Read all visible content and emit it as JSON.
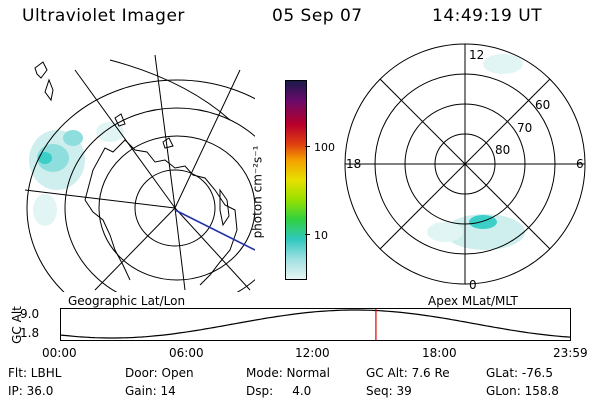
{
  "header": {
    "title": "Ultraviolet Imager",
    "date": "05 Sep 07",
    "time": "14:49:19 UT"
  },
  "colorbar": {
    "unit_label": "photon cm⁻²s⁻¹",
    "ticks": [
      "100",
      "10"
    ]
  },
  "left_panel": {
    "caption": "Geographic Lat/Lon"
  },
  "right_panel": {
    "caption": "Apex MLat/MLT",
    "mlt_labels": {
      "top": "12",
      "bottom": "0",
      "left": "18",
      "right": "6"
    },
    "lat_labels": [
      "60",
      "70",
      "80"
    ]
  },
  "alt_plot": {
    "ylabel": "GC Alt",
    "ymax": "9.0",
    "ymin": "1.8",
    "xticks": [
      "00:00",
      "06:00",
      "12:00",
      "18:00",
      "23:59"
    ],
    "current_hour": 14.82
  },
  "footer": {
    "row1": [
      "Flt: LBHL",
      "Door: Open",
      "Mode: Normal",
      "GC Alt: 7.6 Re",
      "GLat: -76.5"
    ],
    "row2": [
      "IP: 36.0",
      "Gain: 14",
      "Dsp:     4.0",
      "Seq: 39",
      "GLon: 158.8"
    ]
  },
  "colors": {
    "aurora_light": "#cfeeee",
    "aurora_mid": "#8fdede",
    "aurora_strong": "#3ccfc8",
    "marker": "#dd0000"
  }
}
